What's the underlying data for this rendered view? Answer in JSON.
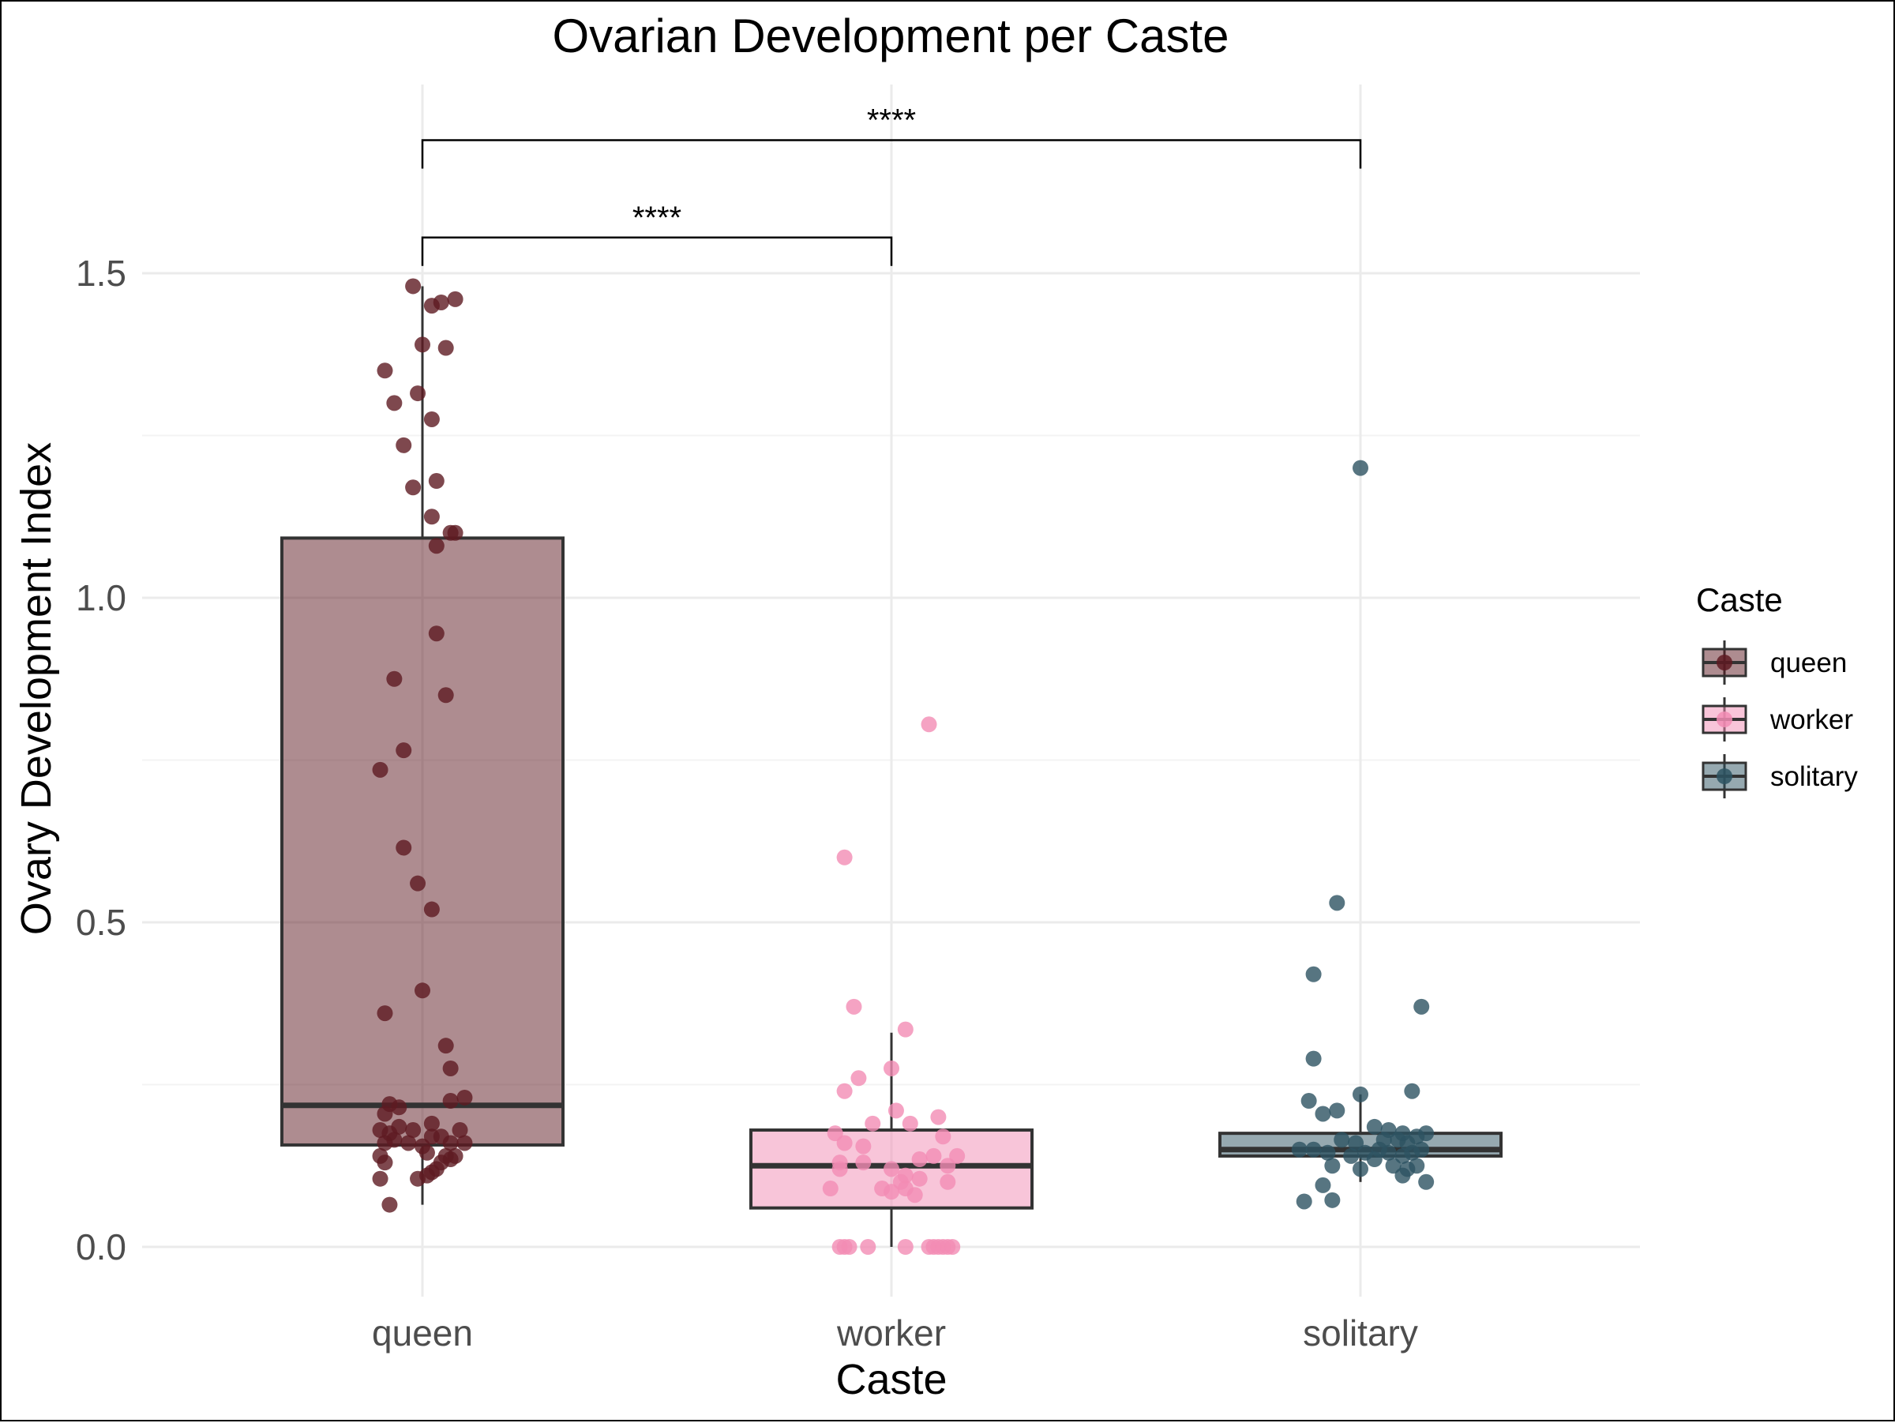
{
  "chart_data": {
    "type": "box",
    "title": "Ovarian Development per Caste",
    "xlabel": "Caste",
    "ylabel": "Ovary Development Index",
    "categories": [
      "queen",
      "worker",
      "solitary"
    ],
    "ylim": [
      -0.08,
      1.78
    ],
    "yticks": [
      {
        "value": 0.0,
        "label": "0.0"
      },
      {
        "value": 0.5,
        "label": "0.5"
      },
      {
        "value": 1.0,
        "label": "1.0"
      },
      {
        "value": 1.5,
        "label": "1.5"
      }
    ],
    "grid": true,
    "legend": {
      "title": "Caste",
      "position": "right",
      "entries": [
        "queen",
        "worker",
        "solitary"
      ]
    },
    "colors": {
      "queen": "#5e1a22",
      "worker": "#f28cb4",
      "solitary": "#2d5362",
      "box_stroke": "#333333"
    },
    "series": [
      {
        "name": "queen",
        "box": {
          "q1": 0.157,
          "median": 0.218,
          "q3": 1.092,
          "whisker_low": 0.065,
          "whisker_high": 1.48
        },
        "points": [
          [
            -0.02,
            1.48
          ],
          [
            0.02,
            1.45
          ],
          [
            0.04,
            1.455
          ],
          [
            0.07,
            1.46
          ],
          [
            -0.08,
            1.35
          ],
          [
            0.0,
            1.39
          ],
          [
            0.05,
            1.385
          ],
          [
            -0.06,
            1.3
          ],
          [
            -0.01,
            1.315
          ],
          [
            0.02,
            1.275
          ],
          [
            -0.04,
            1.235
          ],
          [
            0.03,
            1.18
          ],
          [
            -0.02,
            1.17
          ],
          [
            0.02,
            1.125
          ],
          [
            0.06,
            1.1
          ],
          [
            0.07,
            1.1
          ],
          [
            0.03,
            1.08
          ],
          [
            0.03,
            0.945
          ],
          [
            -0.06,
            0.875
          ],
          [
            0.05,
            0.85
          ],
          [
            -0.04,
            0.765
          ],
          [
            -0.09,
            0.735
          ],
          [
            -0.04,
            0.615
          ],
          [
            -0.01,
            0.56
          ],
          [
            0.02,
            0.52
          ],
          [
            0.0,
            0.395
          ],
          [
            -0.08,
            0.36
          ],
          [
            0.05,
            0.31
          ],
          [
            0.06,
            0.275
          ],
          [
            0.09,
            0.23
          ],
          [
            0.06,
            0.225
          ],
          [
            -0.07,
            0.22
          ],
          [
            -0.05,
            0.215
          ],
          [
            -0.08,
            0.205
          ],
          [
            0.02,
            0.19
          ],
          [
            -0.05,
            0.185
          ],
          [
            -0.09,
            0.18
          ],
          [
            0.08,
            0.18
          ],
          [
            -0.02,
            0.18
          ],
          [
            -0.07,
            0.175
          ],
          [
            0.02,
            0.17
          ],
          [
            0.04,
            0.17
          ],
          [
            -0.06,
            0.165
          ],
          [
            -0.08,
            0.16
          ],
          [
            -0.03,
            0.16
          ],
          [
            0.06,
            0.16
          ],
          [
            0.09,
            0.16
          ],
          [
            0.0,
            0.155
          ],
          [
            0.01,
            0.145
          ],
          [
            -0.09,
            0.14
          ],
          [
            0.05,
            0.14
          ],
          [
            0.07,
            0.14
          ],
          [
            0.06,
            0.135
          ],
          [
            0.04,
            0.13
          ],
          [
            -0.08,
            0.13
          ],
          [
            0.03,
            0.12
          ],
          [
            0.02,
            0.115
          ],
          [
            0.01,
            0.11
          ],
          [
            -0.09,
            0.105
          ],
          [
            -0.01,
            0.105
          ],
          [
            -0.07,
            0.065
          ]
        ]
      },
      {
        "name": "worker",
        "box": {
          "q1": 0.06,
          "median": 0.125,
          "q3": 0.18,
          "whisker_low": 0.0,
          "whisker_high": 0.33
        },
        "points": [
          [
            0.08,
            0.805
          ],
          [
            -0.1,
            0.6
          ],
          [
            -0.08,
            0.37
          ],
          [
            0.03,
            0.335
          ],
          [
            0.0,
            0.275
          ],
          [
            -0.07,
            0.26
          ],
          [
            -0.1,
            0.24
          ],
          [
            0.01,
            0.21
          ],
          [
            0.1,
            0.2
          ],
          [
            -0.04,
            0.19
          ],
          [
            0.04,
            0.19
          ],
          [
            -0.12,
            0.175
          ],
          [
            0.11,
            0.17
          ],
          [
            -0.1,
            0.16
          ],
          [
            -0.06,
            0.155
          ],
          [
            0.14,
            0.14
          ],
          [
            0.09,
            0.14
          ],
          [
            0.06,
            0.135
          ],
          [
            -0.11,
            0.13
          ],
          [
            -0.06,
            0.13
          ],
          [
            0.12,
            0.125
          ],
          [
            0.0,
            0.12
          ],
          [
            -0.11,
            0.12
          ],
          [
            0.03,
            0.11
          ],
          [
            0.06,
            0.105
          ],
          [
            0.12,
            0.1
          ],
          [
            0.02,
            0.1
          ],
          [
            -0.13,
            0.09
          ],
          [
            0.03,
            0.09
          ],
          [
            -0.02,
            0.09
          ],
          [
            0.0,
            0.085
          ],
          [
            0.05,
            0.08
          ],
          [
            -0.11,
            0.0
          ],
          [
            -0.1,
            0.0
          ],
          [
            -0.09,
            0.0
          ],
          [
            -0.05,
            0.0
          ],
          [
            0.03,
            0.0
          ],
          [
            0.08,
            0.0
          ],
          [
            0.09,
            0.0
          ],
          [
            0.1,
            0.0
          ],
          [
            0.11,
            0.0
          ],
          [
            0.12,
            0.0
          ],
          [
            0.13,
            0.0
          ]
        ]
      },
      {
        "name": "solitary",
        "box": {
          "q1": 0.14,
          "median": 0.15,
          "q3": 0.175,
          "whisker_low": 0.1,
          "whisker_high": 0.235
        },
        "points": [
          [
            0.0,
            1.2
          ],
          [
            -0.05,
            0.53
          ],
          [
            -0.1,
            0.42
          ],
          [
            0.13,
            0.37
          ],
          [
            -0.1,
            0.29
          ],
          [
            0.0,
            0.235
          ],
          [
            0.11,
            0.24
          ],
          [
            -0.11,
            0.225
          ],
          [
            -0.08,
            0.205
          ],
          [
            -0.05,
            0.21
          ],
          [
            0.03,
            0.185
          ],
          [
            0.06,
            0.18
          ],
          [
            0.09,
            0.175
          ],
          [
            0.14,
            0.175
          ],
          [
            -0.04,
            0.165
          ],
          [
            0.12,
            0.17
          ],
          [
            0.05,
            0.165
          ],
          [
            -0.01,
            0.16
          ],
          [
            0.08,
            0.165
          ],
          [
            0.1,
            0.16
          ],
          [
            -0.13,
            0.15
          ],
          [
            -0.1,
            0.15
          ],
          [
            -0.07,
            0.145
          ],
          [
            -0.02,
            0.14
          ],
          [
            0.01,
            0.145
          ],
          [
            0.04,
            0.15
          ],
          [
            0.06,
            0.145
          ],
          [
            0.11,
            0.145
          ],
          [
            0.13,
            0.15
          ],
          [
            0.09,
            0.14
          ],
          [
            0.03,
            0.135
          ],
          [
            -0.06,
            0.125
          ],
          [
            0.07,
            0.125
          ],
          [
            0.12,
            0.125
          ],
          [
            0.1,
            0.12
          ],
          [
            0.0,
            0.12
          ],
          [
            0.09,
            0.11
          ],
          [
            0.14,
            0.1
          ],
          [
            -0.08,
            0.095
          ],
          [
            -0.06,
            0.072
          ],
          [
            -0.12,
            0.07
          ]
        ]
      }
    ],
    "annotations": [
      {
        "from": "queen",
        "to": "worker",
        "y": 1.555,
        "label": "****"
      },
      {
        "from": "queen",
        "to": "solitary",
        "y": 1.705,
        "label": "****"
      }
    ]
  }
}
